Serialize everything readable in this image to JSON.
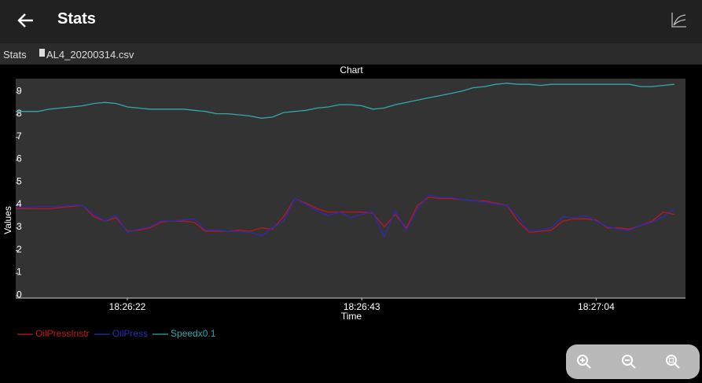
{
  "app": {
    "title": "Stats",
    "breadcrumb": "Stats",
    "file": "AL4_20200314.csv"
  },
  "chart_data": {
    "type": "line",
    "title": "Chart",
    "x_label": "Time",
    "y_label": "Values",
    "x": [
      "18:26:12",
      "18:26:13",
      "18:26:14",
      "18:26:15",
      "18:26:16",
      "18:26:17",
      "18:26:18",
      "18:26:19",
      "18:26:20",
      "18:26:21",
      "18:26:22",
      "18:26:23",
      "18:26:24",
      "18:26:25",
      "18:26:26",
      "18:26:27",
      "18:26:28",
      "18:26:29",
      "18:26:30",
      "18:26:31",
      "18:26:32",
      "18:26:33",
      "18:26:34",
      "18:26:35",
      "18:26:36",
      "18:26:37",
      "18:26:38",
      "18:26:39",
      "18:26:40",
      "18:26:41",
      "18:26:42",
      "18:26:43",
      "18:26:44",
      "18:26:45",
      "18:26:46",
      "18:26:47",
      "18:26:48",
      "18:26:49",
      "18:26:50",
      "18:26:51",
      "18:26:52",
      "18:26:53",
      "18:26:54",
      "18:26:55",
      "18:26:56",
      "18:26:57",
      "18:26:58",
      "18:26:59",
      "18:27:00",
      "18:27:01",
      "18:27:02",
      "18:27:03",
      "18:27:04",
      "18:27:05",
      "18:27:06",
      "18:27:07",
      "18:27:08",
      "18:27:09",
      "18:27:10",
      "18:27:11"
    ],
    "series": [
      {
        "name": "OilPressInstr",
        "color": "#c0161b",
        "values": [
          3.85,
          3.85,
          3.85,
          3.85,
          3.9,
          3.95,
          4.0,
          3.5,
          3.3,
          3.45,
          2.85,
          2.9,
          3.0,
          3.25,
          3.3,
          3.3,
          3.25,
          2.85,
          2.85,
          2.85,
          2.9,
          2.85,
          3.0,
          2.95,
          3.5,
          4.3,
          4.1,
          3.85,
          3.7,
          3.7,
          3.7,
          3.7,
          3.65,
          3.05,
          3.6,
          3.0,
          4.0,
          4.35,
          4.3,
          4.3,
          4.25,
          4.2,
          4.2,
          4.1,
          4.0,
          3.3,
          2.8,
          2.85,
          2.9,
          3.3,
          3.4,
          3.4,
          3.35,
          3.0,
          3.0,
          2.95,
          3.1,
          3.3,
          3.7,
          3.6
        ]
      },
      {
        "name": "OilPress",
        "color": "#2b2bb5",
        "values": [
          3.9,
          3.9,
          3.95,
          3.95,
          3.95,
          4.0,
          4.0,
          3.6,
          3.3,
          3.55,
          2.8,
          2.95,
          3.05,
          3.3,
          3.3,
          3.35,
          3.4,
          2.9,
          2.9,
          2.85,
          2.85,
          2.8,
          2.65,
          3.0,
          3.3,
          4.3,
          4.05,
          3.75,
          3.55,
          3.7,
          3.45,
          3.6,
          3.7,
          2.6,
          3.75,
          2.9,
          3.85,
          4.45,
          4.35,
          4.35,
          4.25,
          4.2,
          4.15,
          4.05,
          4.0,
          3.5,
          2.85,
          2.9,
          3.0,
          3.5,
          3.45,
          3.55,
          3.3,
          3.05,
          2.95,
          2.9,
          3.1,
          3.25,
          3.5,
          3.85
        ]
      },
      {
        "name": "Speedx0.1",
        "color": "#34a8a8",
        "values": [
          8.15,
          8.15,
          8.15,
          8.25,
          8.3,
          8.35,
          8.4,
          8.5,
          8.55,
          8.5,
          8.35,
          8.3,
          8.25,
          8.25,
          8.25,
          8.25,
          8.2,
          8.15,
          8.05,
          8.05,
          8.0,
          7.95,
          7.85,
          7.9,
          8.1,
          8.15,
          8.2,
          8.3,
          8.35,
          8.45,
          8.45,
          8.4,
          8.25,
          8.3,
          8.45,
          8.55,
          8.65,
          8.75,
          8.85,
          8.95,
          9.05,
          9.2,
          9.25,
          9.35,
          9.4,
          9.35,
          9.35,
          9.3,
          9.35,
          9.35,
          9.35,
          9.35,
          9.35,
          9.35,
          9.35,
          9.35,
          9.25,
          9.25,
          9.3,
          9.35
        ]
      }
    ],
    "xlim": [
      "18:26:12",
      "18:27:12"
    ],
    "xticks": [
      "18:26:22",
      "18:26:43",
      "18:27:04"
    ],
    "ylim": [
      -0.1,
      9.6
    ],
    "yticks": [
      0,
      1,
      2,
      3,
      4,
      5,
      6,
      7,
      8,
      9
    ],
    "grid": false,
    "legend": "bottom-left"
  }
}
